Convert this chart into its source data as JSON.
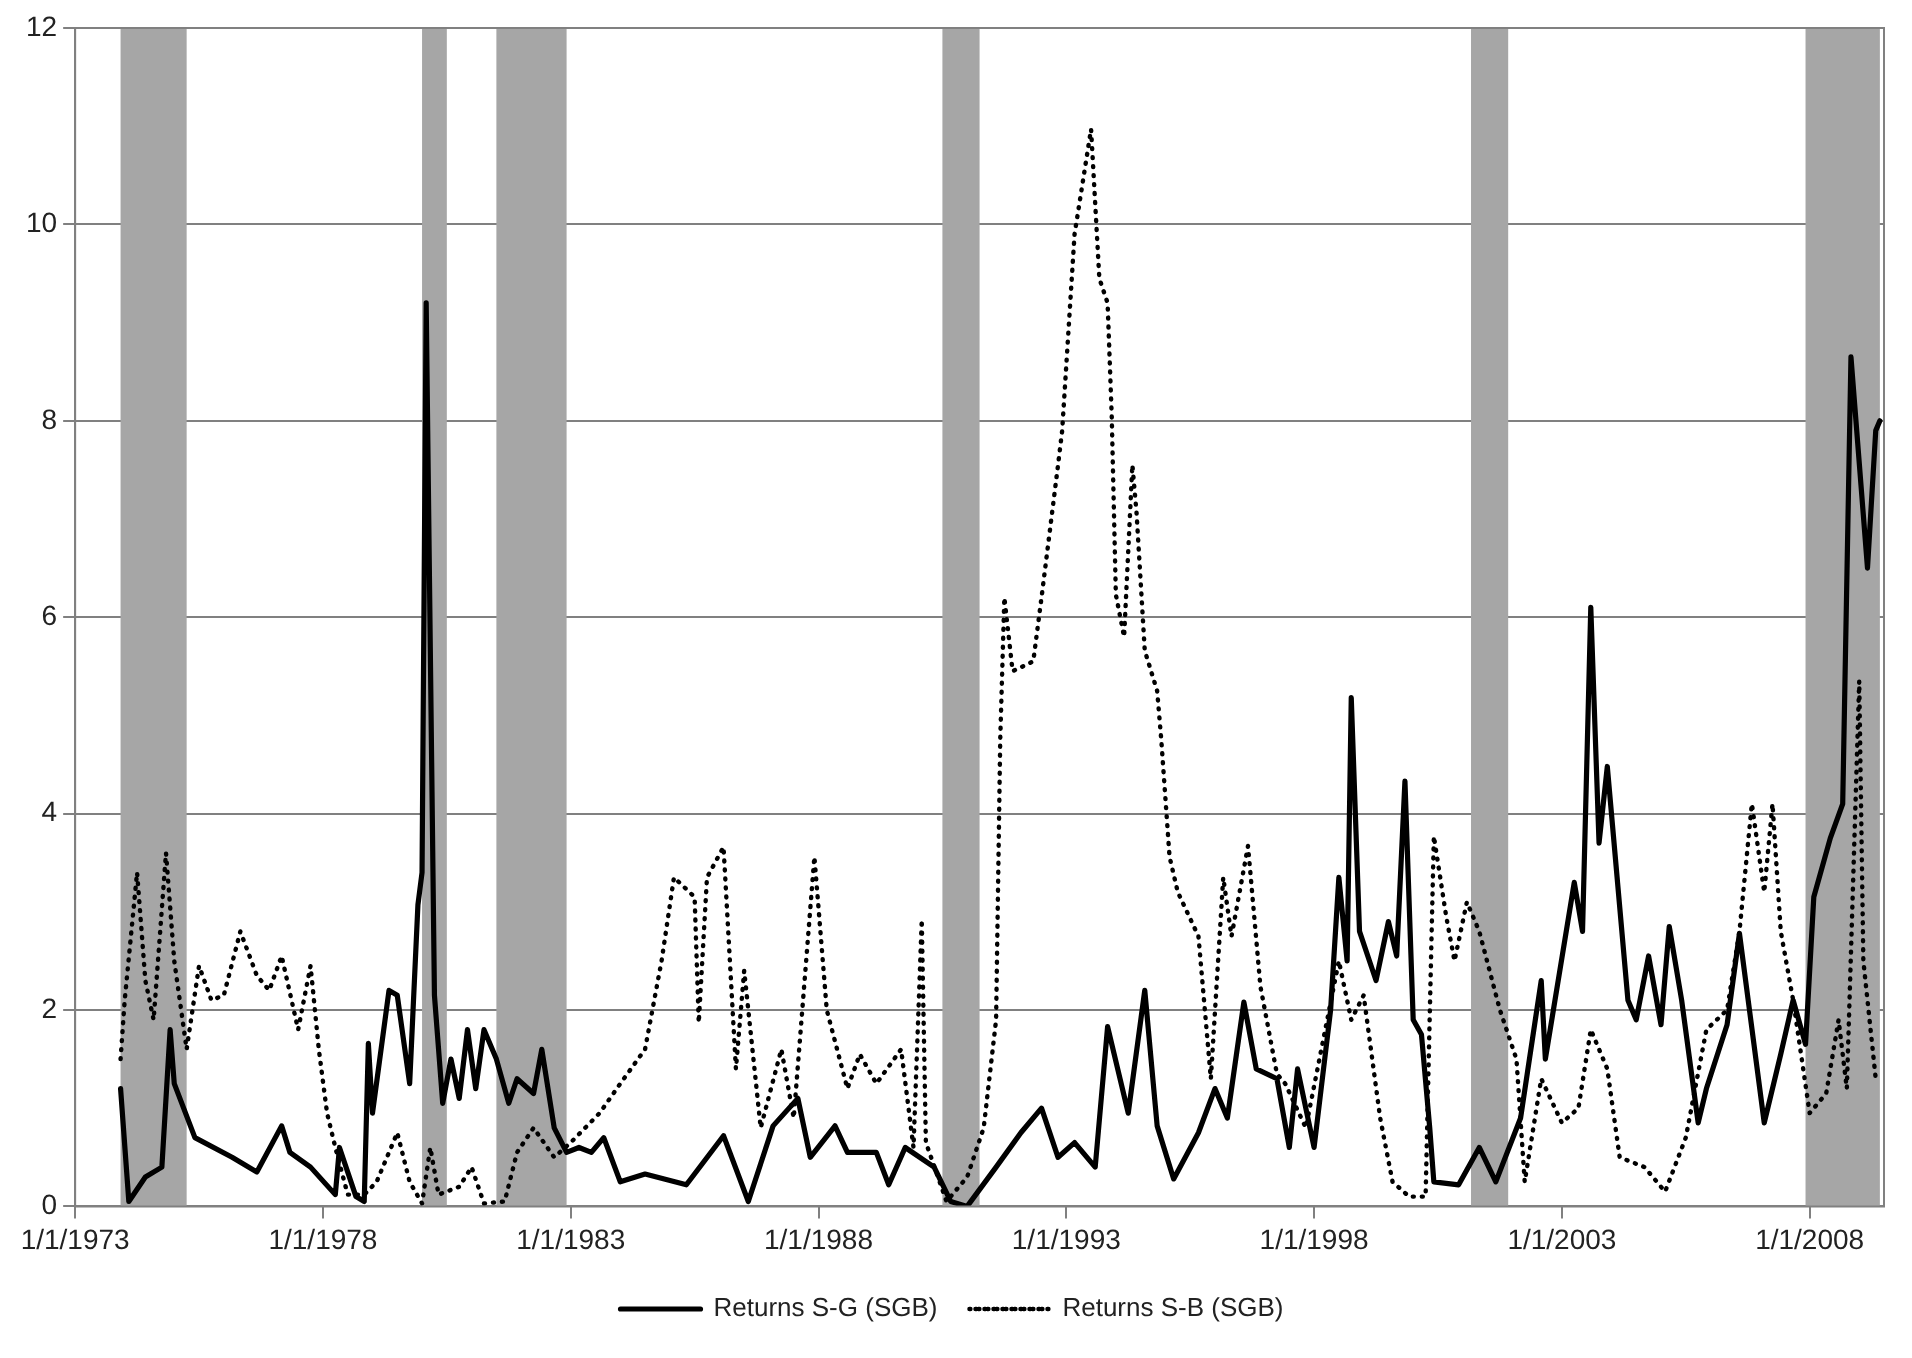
{
  "chart_data": {
    "type": "line",
    "xlim": [
      "1973-01",
      "2009-07"
    ],
    "xticks": [
      {
        "value": "1973-01-01",
        "label": "1/1/1973"
      },
      {
        "value": "1978-01-01",
        "label": "1/1/1978"
      },
      {
        "value": "1983-01-01",
        "label": "1/1/1983"
      },
      {
        "value": "1988-01-01",
        "label": "1/1/1988"
      },
      {
        "value": "1993-01-01",
        "label": "1/1/1993"
      },
      {
        "value": "1998-01-01",
        "label": "1/1/1998"
      },
      {
        "value": "2003-01-01",
        "label": "1/1/2003"
      },
      {
        "value": "2008-01-01",
        "label": "1/1/2008"
      }
    ],
    "ylim": [
      0,
      12
    ],
    "yticks": [
      0,
      2,
      4,
      6,
      8,
      10,
      12
    ],
    "grid": "y",
    "legend": "bottom",
    "bands": [
      {
        "axis": "x",
        "from": "1973-12",
        "to": "1975-04",
        "color": "#a6a6a6"
      },
      {
        "axis": "x",
        "from": "1980-01",
        "to": "1980-07",
        "color": "#a6a6a6"
      },
      {
        "axis": "x",
        "from": "1981-07",
        "to": "1982-12",
        "color": "#a6a6a6"
      },
      {
        "axis": "x",
        "from": "1990-07",
        "to": "1991-04",
        "color": "#a6a6a6"
      },
      {
        "axis": "x",
        "from": "2001-03",
        "to": "2001-12",
        "color": "#a6a6a6"
      },
      {
        "axis": "x",
        "from": "2007-12",
        "to": "2009-06",
        "color": "#a6a6a6"
      }
    ],
    "series": [
      {
        "name": "Returns S-G (SGB)",
        "color": "#000000",
        "line_style": "solid",
        "x": [
          "1973-12",
          "1974-02",
          "1974-06",
          "1974-10",
          "1974-12",
          "1975-01",
          "1975-06",
          "1976-03",
          "1976-09",
          "1977-03",
          "1977-05",
          "1977-10",
          "1978-04",
          "1978-05",
          "1978-09",
          "1978-11",
          "1978-12",
          "1979-01",
          "1979-05",
          "1979-07",
          "1979-10",
          "1979-12",
          "1980-01",
          "1980-02",
          "1980-04",
          "1980-06",
          "1980-08",
          "1980-10",
          "1980-12",
          "1981-02",
          "1981-04",
          "1981-07",
          "1981-10",
          "1981-12",
          "1982-04",
          "1982-06",
          "1982-09",
          "1982-12",
          "1983-03",
          "1983-06",
          "1983-09",
          "1984-01",
          "1984-07",
          "1985-05",
          "1986-02",
          "1986-08",
          "1987-02",
          "1987-08",
          "1987-11",
          "1988-05",
          "1988-08",
          "1989-03",
          "1989-06",
          "1989-10",
          "1990-05",
          "1990-09",
          "1991-01",
          "1991-08",
          "1992-02",
          "1992-07",
          "1992-11",
          "1993-03",
          "1993-08",
          "1993-11",
          "1994-04",
          "1994-08",
          "1994-11",
          "1995-03",
          "1995-09",
          "1996-01",
          "1996-04",
          "1996-08",
          "1996-11",
          "1997-04",
          "1997-07",
          "1997-09",
          "1998-01",
          "1998-05",
          "1998-07",
          "1998-09",
          "1998-10",
          "1998-12",
          "1999-04",
          "1999-07",
          "1999-09",
          "1999-11",
          "2000-01",
          "2000-03",
          "2000-05",
          "2000-06",
          "2000-12",
          "2001-05",
          "2001-09",
          "2002-03",
          "2002-08",
          "2002-09",
          "2003-04",
          "2003-06",
          "2003-08",
          "2003-10",
          "2003-12",
          "2004-05",
          "2004-07",
          "2004-10",
          "2005-01",
          "2005-03",
          "2005-06",
          "2005-10",
          "2005-12",
          "2006-05",
          "2006-08",
          "2007-02",
          "2007-06",
          "2007-09",
          "2007-12",
          "2008-02",
          "2008-06",
          "2008-09",
          "2008-11",
          "2009-03",
          "2009-05",
          "2009-06"
        ],
        "values": [
          1.2,
          0.05,
          0.3,
          0.4,
          1.8,
          1.25,
          0.7,
          0.5,
          0.35,
          0.82,
          0.55,
          0.4,
          0.12,
          0.6,
          0.1,
          0.05,
          1.66,
          0.95,
          2.2,
          2.15,
          1.25,
          3.07,
          3.4,
          9.2,
          2.15,
          1.05,
          1.5,
          1.1,
          1.8,
          1.2,
          1.8,
          1.5,
          1.05,
          1.3,
          1.15,
          1.6,
          0.8,
          0.55,
          0.6,
          0.55,
          0.7,
          0.25,
          0.33,
          0.22,
          0.72,
          0.05,
          0.82,
          1.1,
          0.5,
          0.82,
          0.55,
          0.55,
          0.22,
          0.6,
          0.4,
          0.05,
          0.0,
          0.4,
          0.75,
          1.0,
          0.5,
          0.65,
          0.4,
          1.83,
          0.95,
          2.2,
          0.82,
          0.28,
          0.75,
          1.2,
          0.9,
          2.08,
          1.4,
          1.3,
          0.6,
          1.4,
          0.6,
          2.0,
          3.35,
          2.5,
          5.18,
          2.8,
          2.3,
          2.9,
          2.55,
          4.33,
          1.9,
          1.75,
          0.8,
          0.25,
          0.22,
          0.6,
          0.25,
          0.9,
          2.3,
          1.5,
          3.3,
          2.8,
          6.1,
          3.7,
          4.48,
          2.1,
          1.9,
          2.55,
          1.85,
          2.85,
          2.1,
          0.85,
          1.2,
          1.85,
          2.78,
          0.85,
          1.55,
          2.1,
          1.65,
          3.15,
          3.75,
          4.1,
          8.65,
          6.5,
          7.9,
          8.0
        ]
      },
      {
        "name": "Returns S-B (SGB)",
        "color": "#000000",
        "line_style": "dotted",
        "x": [
          "1973-12",
          "1974-01",
          "1974-04",
          "1974-06",
          "1974-08",
          "1974-11",
          "1975-01",
          "1975-04",
          "1975-07",
          "1975-10",
          "1976-01",
          "1976-05",
          "1976-09",
          "1976-12",
          "1977-03",
          "1977-07",
          "1977-10",
          "1977-12",
          "1978-02",
          "1978-04",
          "1978-07",
          "1978-11",
          "1979-02",
          "1979-07",
          "1979-10",
          "1980-01",
          "1980-03",
          "1980-05",
          "1980-10",
          "1981-01",
          "1981-04",
          "1981-09",
          "1981-12",
          "1982-04",
          "1982-09",
          "1983-01",
          "1983-08",
          "1984-01",
          "1984-07",
          "1984-11",
          "1985-02",
          "1985-07",
          "1985-08",
          "1985-10",
          "1986-02",
          "1986-05",
          "1986-07",
          "1986-11",
          "1987-04",
          "1987-07",
          "1987-12",
          "1988-03",
          "1988-08",
          "1988-11",
          "1989-03",
          "1989-09",
          "1989-12",
          "1990-02",
          "1990-03",
          "1990-08",
          "1991-01",
          "1991-05",
          "1991-08",
          "1991-09",
          "1991-10",
          "1991-12",
          "1992-05",
          "1992-07",
          "1992-11",
          "1992-12",
          "1993-03",
          "1993-07",
          "1993-09",
          "1993-11",
          "1993-12",
          "1994-01",
          "1994-03",
          "1994-05",
          "1994-06",
          "1994-08",
          "1994-11",
          "1994-12",
          "1995-02",
          "1995-04",
          "1995-09",
          "1995-12",
          "1996-03",
          "1996-05",
          "1996-09",
          "1996-12",
          "1997-04",
          "1997-06",
          "1997-11",
          "1998-07",
          "1998-10",
          "1999-01",
          "1999-05",
          "1999-08",
          "1999-12",
          "2000-04",
          "2000-06",
          "2000-09",
          "2000-11",
          "2001-02",
          "2001-05",
          "2001-10",
          "2002-02",
          "2002-04",
          "2002-08",
          "2003-01",
          "2003-05",
          "2003-08",
          "2003-12",
          "2004-03",
          "2004-09",
          "2005-02",
          "2005-07",
          "2005-12",
          "2006-05",
          "2006-08",
          "2006-11",
          "2007-02",
          "2007-04",
          "2007-06",
          "2007-09",
          "2008-01",
          "2008-05",
          "2008-08",
          "2008-10",
          "2009-01",
          "2009-02",
          "2009-05"
        ],
        "values": [
          1.5,
          2.1,
          3.4,
          2.3,
          1.9,
          3.6,
          2.5,
          1.6,
          2.45,
          2.1,
          2.15,
          2.8,
          2.35,
          2.2,
          2.55,
          1.8,
          2.45,
          1.6,
          0.95,
          0.6,
          0.12,
          0.12,
          0.25,
          0.75,
          0.25,
          0.03,
          0.6,
          0.12,
          0.2,
          0.4,
          0.03,
          0.05,
          0.55,
          0.8,
          0.5,
          0.65,
          0.95,
          1.25,
          1.6,
          2.5,
          3.35,
          3.15,
          1.87,
          3.35,
          3.66,
          1.4,
          2.4,
          0.8,
          1.6,
          0.9,
          3.56,
          2.0,
          1.2,
          1.55,
          1.25,
          1.6,
          0.6,
          2.92,
          0.65,
          0.05,
          0.3,
          0.8,
          1.9,
          4.75,
          6.2,
          5.45,
          5.55,
          6.2,
          7.55,
          7.9,
          9.9,
          10.97,
          9.45,
          9.2,
          8.05,
          6.23,
          5.8,
          7.55,
          7.07,
          5.66,
          5.25,
          4.75,
          3.56,
          3.2,
          2.75,
          1.3,
          3.35,
          2.75,
          3.67,
          2.24,
          1.35,
          1.25,
          0.8,
          2.5,
          1.9,
          2.15,
          0.9,
          0.25,
          0.1,
          0.1,
          3.77,
          2.95,
          2.5,
          3.1,
          2.8,
          2.0,
          1.5,
          0.25,
          1.3,
          0.85,
          1.0,
          1.8,
          1.4,
          0.5,
          0.4,
          0.15,
          0.7,
          1.8,
          2.0,
          2.8,
          4.1,
          3.2,
          4.1,
          2.8,
          2.1,
          0.95,
          1.15,
          1.9,
          1.2,
          5.35,
          2.5,
          1.3
        ]
      }
    ]
  }
}
